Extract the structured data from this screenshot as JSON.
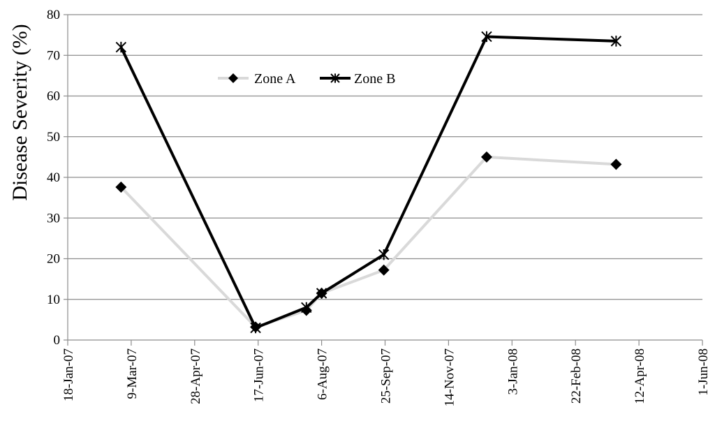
{
  "chart_data": {
    "type": "line",
    "title": "",
    "xlabel": "",
    "ylabel": "Disease  Severity (%)",
    "ylim": [
      0,
      80
    ],
    "yticks": [
      "0",
      "10",
      "20",
      "30",
      "40",
      "50",
      "60",
      "70",
      "80"
    ],
    "xlim": [
      "2007-01-18",
      "2008-06-01"
    ],
    "xticks": [
      {
        "date": "2007-01-18",
        "label": "18-Jan-07"
      },
      {
        "date": "2007-03-09",
        "label": "9-Mar-07"
      },
      {
        "date": "2007-04-28",
        "label": "28-Apr-07"
      },
      {
        "date": "2007-06-17",
        "label": "17-Jun-07"
      },
      {
        "date": "2007-08-06",
        "label": "6-Aug-07"
      },
      {
        "date": "2007-09-25",
        "label": "25-Sep-07"
      },
      {
        "date": "2007-11-14",
        "label": "14-Nov-07"
      },
      {
        "date": "2008-01-03",
        "label": "3-Jan-08"
      },
      {
        "date": "2008-02-22",
        "label": "22-Feb-08"
      },
      {
        "date": "2008-04-12",
        "label": "12-Apr-08"
      },
      {
        "date": "2008-06-01",
        "label": "1-Jun-08"
      }
    ],
    "grid": true,
    "legend_position": "upper-left-inside",
    "series": [
      {
        "name": "Zone A",
        "color": "#d9d9d9",
        "marker": "diamond",
        "marker_color": "#000000",
        "points": [
          {
            "x": "2007-03-01",
            "y": 37.6
          },
          {
            "x": "2007-06-15",
            "y": 3.2
          },
          {
            "x": "2007-07-25",
            "y": 7.3
          },
          {
            "x": "2007-08-06",
            "y": 11.5
          },
          {
            "x": "2007-09-24",
            "y": 17.2
          },
          {
            "x": "2007-12-14",
            "y": 45.0
          },
          {
            "x": "2008-03-25",
            "y": 43.2
          }
        ]
      },
      {
        "name": "Zone B",
        "color": "#000000",
        "marker": "star",
        "marker_color": "#000000",
        "points": [
          {
            "x": "2007-03-01",
            "y": 72.0
          },
          {
            "x": "2007-06-15",
            "y": 3.0
          },
          {
            "x": "2007-07-25",
            "y": 8.0
          },
          {
            "x": "2007-08-06",
            "y": 11.5
          },
          {
            "x": "2007-09-24",
            "y": 21.0
          },
          {
            "x": "2007-12-14",
            "y": 74.6
          },
          {
            "x": "2008-03-25",
            "y": 73.5
          }
        ]
      }
    ]
  }
}
